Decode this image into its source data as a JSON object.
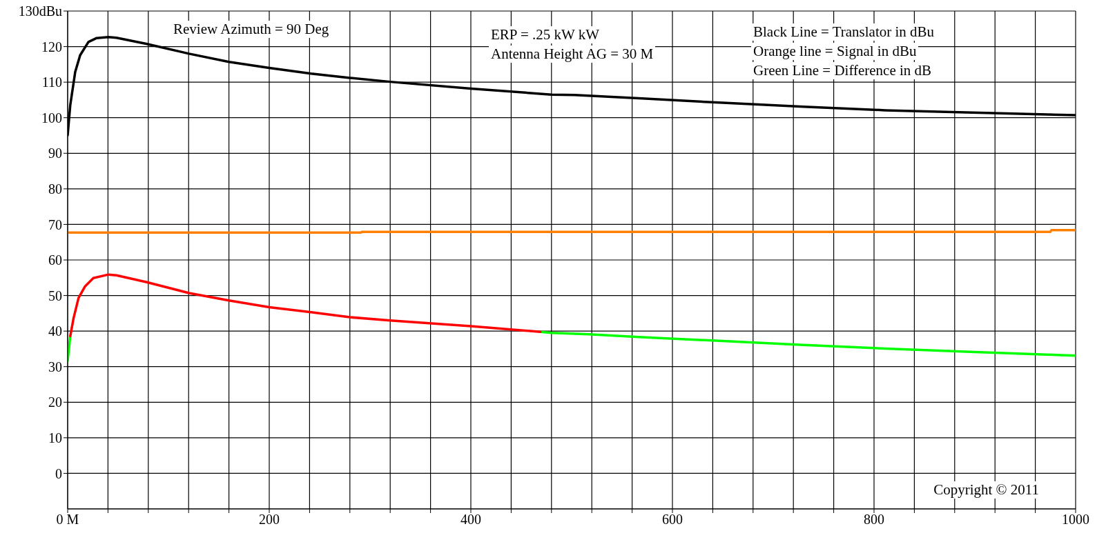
{
  "chart_data": {
    "type": "line",
    "xlim": [
      0,
      1000
    ],
    "ylim": [
      -10,
      130
    ],
    "xticks": [
      {
        "value": 0,
        "label": "0 M"
      },
      {
        "value": 40,
        "label": null
      },
      {
        "value": 80,
        "label": null
      },
      {
        "value": 120,
        "label": null
      },
      {
        "value": 160,
        "label": null
      },
      200,
      {
        "value": 240,
        "label": null
      },
      {
        "value": 280,
        "label": null
      },
      {
        "value": 320,
        "label": null
      },
      {
        "value": 360,
        "label": null
      },
      400,
      {
        "value": 440,
        "label": null
      },
      {
        "value": 480,
        "label": null
      },
      {
        "value": 520,
        "label": null
      },
      {
        "value": 560,
        "label": null
      },
      600,
      {
        "value": 640,
        "label": null
      },
      {
        "value": 680,
        "label": null
      },
      {
        "value": 720,
        "label": null
      },
      {
        "value": 760,
        "label": null
      },
      800,
      {
        "value": 840,
        "label": null
      },
      {
        "value": 880,
        "label": null
      },
      {
        "value": 920,
        "label": null
      },
      {
        "value": 960,
        "label": null
      },
      1000
    ],
    "yticks": [
      0,
      10,
      20,
      30,
      40,
      50,
      60,
      70,
      80,
      90,
      100,
      110,
      120,
      {
        "value": 130,
        "label": "130dBu"
      }
    ],
    "grid": true,
    "annotations": [
      "Review Azimuth = 90 Deg",
      "ERP = .25 kW kW",
      "Antenna Height AG = 30 M",
      "Black Line = Translator in dBu",
      "Orange line = Signal in dBu",
      "Green Line = Difference in dB",
      "Copyright © 2011"
    ],
    "series": [
      {
        "color": "#000000",
        "x": [
          0,
          2.6,
          7.5,
          12.4,
          20.6,
          28.8,
          40.4,
          48.4,
          77.9,
          120.4,
          160,
          200,
          241.5,
          280,
          320,
          400,
          480,
          503,
          570,
          650,
          730,
          811,
          891,
          1000
        ],
        "values": [
          95.1,
          103.6,
          112.9,
          117.6,
          121.3,
          122.4,
          122.7,
          122.5,
          120.8,
          118.0,
          115.7,
          114.0,
          112.4,
          111.2,
          110.1,
          108.2,
          106.5,
          106.4,
          105.4,
          104.2,
          103.1,
          102.1,
          101.5,
          100.7
        ]
      },
      {
        "color": "#ff8000",
        "x": [
          0,
          291,
          292,
          975,
          976,
          1000
        ],
        "values": [
          67.7,
          67.7,
          67.9,
          67.9,
          68.4,
          68.4
        ]
      },
      {
        "color": "#00ff00",
        "x": [
          0,
          2.6,
          100,
          469,
          480,
          517,
          570,
          650,
          730,
          811,
          891,
          971,
          1000
        ],
        "values": [
          31.6,
          38.6,
          null,
          39.8,
          39.5,
          39.1,
          38.3,
          37.2,
          36.1,
          35.1,
          34.2,
          33.4,
          33.1
        ]
      },
      {
        "color": "#ff0000",
        "x": [
          2.6,
          5.9,
          10.8,
          17.3,
          25.5,
          40.4,
          48.4,
          77.9,
          120.4,
          160,
          200,
          241.5,
          280,
          320,
          400,
          469
        ],
        "values": [
          38.6,
          43.7,
          49.3,
          52.6,
          54.9,
          55.9,
          55.7,
          53.8,
          50.7,
          48.6,
          46.7,
          45.3,
          43.9,
          43.0,
          41.4,
          39.8
        ]
      }
    ]
  }
}
